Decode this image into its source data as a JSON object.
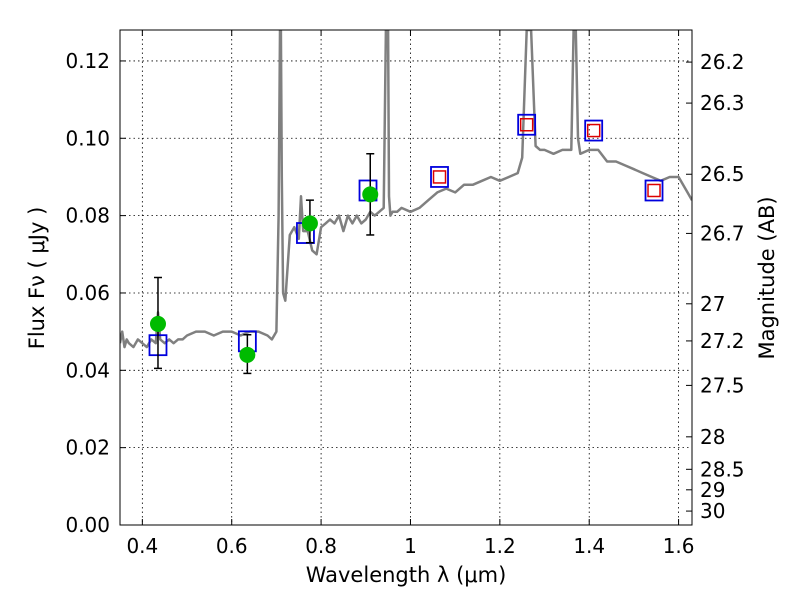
{
  "chart_data": {
    "type": "scatter",
    "xlabel": "Wavelength  λ (μm)",
    "ylabel": "Flux  Fν  ( μJy )",
    "ylabel_right": "Magnitude (AB)",
    "xlim": [
      0.35,
      1.63
    ],
    "ylim": [
      0.0,
      0.128
    ],
    "grid": true,
    "x_ticks": [
      0.4,
      0.6,
      0.8,
      1.0,
      1.2,
      1.4,
      1.6
    ],
    "x_tick_labels": [
      "0.4",
      "0.6",
      "0.8",
      "1",
      "1.2",
      "1.4",
      "1.6"
    ],
    "y_ticks": [
      0.0,
      0.02,
      0.04,
      0.06,
      0.08,
      0.1,
      0.12
    ],
    "y_tick_labels": [
      "0.00",
      "0.02",
      "0.04",
      "0.06",
      "0.08",
      "0.10",
      "0.12"
    ],
    "right_ticks": [
      {
        "label": "26.2",
        "flux": 0.1197
      },
      {
        "label": "26.3",
        "flux": 0.1091
      },
      {
        "label": "26.5",
        "flux": 0.0907
      },
      {
        "label": "26.7",
        "flux": 0.0754
      },
      {
        "label": "27",
        "flux": 0.0572
      },
      {
        "label": "27.2",
        "flux": 0.0476
      },
      {
        "label": "27.5",
        "flux": 0.0361
      },
      {
        "label": "28",
        "flux": 0.0228
      },
      {
        "label": "28.5",
        "flux": 0.0144
      },
      {
        "label": "29",
        "flux": 0.0091
      },
      {
        "label": "30",
        "flux": 0.0036
      }
    ],
    "colors": {
      "model_spectrum": "#808080",
      "observed_points": "#00bb00",
      "error_bars": "#000000",
      "model_boxes": "#0000dd",
      "model_inner_boxes": "#dd0000"
    },
    "model_spectrum": {
      "x": [
        0.35,
        0.355,
        0.36,
        0.365,
        0.37,
        0.38,
        0.39,
        0.4,
        0.41,
        0.42,
        0.43,
        0.435,
        0.44,
        0.45,
        0.46,
        0.47,
        0.48,
        0.49,
        0.5,
        0.52,
        0.54,
        0.56,
        0.58,
        0.6,
        0.62,
        0.64,
        0.66,
        0.68,
        0.69,
        0.7,
        0.705,
        0.708,
        0.71,
        0.712,
        0.715,
        0.72,
        0.73,
        0.74,
        0.75,
        0.755,
        0.76,
        0.77,
        0.78,
        0.79,
        0.8,
        0.81,
        0.82,
        0.83,
        0.84,
        0.85,
        0.86,
        0.87,
        0.88,
        0.89,
        0.9,
        0.91,
        0.92,
        0.93,
        0.94,
        0.945,
        0.948,
        0.95,
        0.952,
        0.955,
        0.96,
        0.97,
        0.98,
        1.0,
        1.02,
        1.04,
        1.06,
        1.08,
        1.1,
        1.12,
        1.14,
        1.16,
        1.18,
        1.2,
        1.22,
        1.24,
        1.25,
        1.26,
        1.27,
        1.28,
        1.29,
        1.3,
        1.32,
        1.34,
        1.36,
        1.365,
        1.37,
        1.375,
        1.38,
        1.4,
        1.42,
        1.44,
        1.46,
        1.48,
        1.5,
        1.52,
        1.54,
        1.56,
        1.58,
        1.6,
        1.62,
        1.63
      ],
      "y": [
        0.047,
        0.05,
        0.046,
        0.048,
        0.047,
        0.046,
        0.048,
        0.047,
        0.046,
        0.048,
        0.047,
        0.055,
        0.048,
        0.047,
        0.048,
        0.047,
        0.048,
        0.048,
        0.049,
        0.05,
        0.05,
        0.049,
        0.05,
        0.05,
        0.049,
        0.05,
        0.05,
        0.049,
        0.048,
        0.05,
        0.08,
        0.128,
        0.128,
        0.09,
        0.06,
        0.058,
        0.075,
        0.077,
        0.074,
        0.085,
        0.076,
        0.076,
        0.071,
        0.07,
        0.077,
        0.078,
        0.079,
        0.078,
        0.08,
        0.076,
        0.08,
        0.078,
        0.08,
        0.078,
        0.079,
        0.081,
        0.08,
        0.081,
        0.082,
        0.128,
        0.128,
        0.128,
        0.085,
        0.08,
        0.081,
        0.081,
        0.082,
        0.081,
        0.082,
        0.084,
        0.086,
        0.087,
        0.086,
        0.088,
        0.088,
        0.089,
        0.09,
        0.089,
        0.09,
        0.091,
        0.095,
        0.128,
        0.128,
        0.098,
        0.097,
        0.097,
        0.096,
        0.097,
        0.097,
        0.128,
        0.128,
        0.1,
        0.096,
        0.097,
        0.097,
        0.094,
        0.094,
        0.093,
        0.092,
        0.091,
        0.09,
        0.089,
        0.09,
        0.09,
        0.086,
        0.084
      ]
    },
    "observed": [
      {
        "x": 0.435,
        "y": 0.052,
        "err_low": 0.0115,
        "err_high": 0.012
      },
      {
        "x": 0.635,
        "y": 0.044,
        "err_low": 0.0048,
        "err_high": 0.0052
      },
      {
        "x": 0.775,
        "y": 0.078,
        "err_low": 0.005,
        "err_high": 0.006
      },
      {
        "x": 0.91,
        "y": 0.0855,
        "err_low": 0.0105,
        "err_high": 0.0105
      }
    ],
    "model_photometry": [
      {
        "x": 0.435,
        "y": 0.0465,
        "inner": false
      },
      {
        "x": 0.635,
        "y": 0.0475,
        "inner": false
      },
      {
        "x": 0.765,
        "y": 0.0755,
        "inner": false
      },
      {
        "x": 0.905,
        "y": 0.0865,
        "inner": false
      },
      {
        "x": 1.065,
        "y": 0.09,
        "inner": true
      },
      {
        "x": 1.26,
        "y": 0.1035,
        "inner": true
      },
      {
        "x": 1.41,
        "y": 0.102,
        "inner": true
      },
      {
        "x": 1.545,
        "y": 0.0865,
        "inner": true
      }
    ]
  }
}
